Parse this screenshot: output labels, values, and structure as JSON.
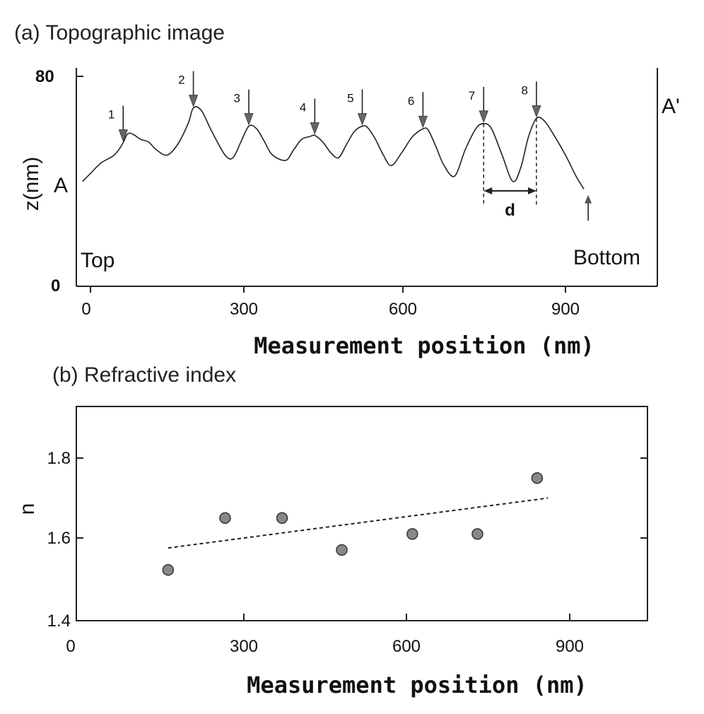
{
  "chart_data": [
    {
      "type": "line",
      "title": "(a) Topographic image",
      "xlabel": "Measurement position (nm)",
      "ylabel": "z(nm)",
      "xlim": [
        0,
        1040
      ],
      "ylim": [
        0,
        80
      ],
      "x_ticks": [
        "0",
        "300",
        "600",
        "900"
      ],
      "y_ticks": [
        "0",
        "80"
      ],
      "profile": {
        "x": [
          -15,
          0,
          20,
          45,
          60,
          70,
          80,
          95,
          110,
          125,
          145,
          165,
          185,
          195,
          210,
          230,
          255,
          270,
          285,
          300,
          315,
          330,
          345,
          370,
          385,
          400,
          415,
          425,
          440,
          455,
          470,
          485,
          500,
          515,
          525,
          540,
          555,
          570,
          590,
          610,
          630,
          640,
          655,
          670,
          690,
          710,
          730,
          745,
          760,
          780,
          800,
          815,
          830,
          845,
          860,
          880,
          900,
          920,
          935
        ],
        "y": [
          40,
          43,
          47,
          50,
          54,
          58,
          58,
          56,
          55,
          52,
          50,
          54,
          62,
          68,
          67,
          59,
          50,
          49,
          55,
          61,
          60,
          55,
          50,
          48,
          52,
          56,
          57,
          57.5,
          55,
          51,
          49,
          54,
          59,
          61,
          60.5,
          56,
          50,
          46,
          51,
          57,
          60,
          59.5,
          53,
          46,
          42,
          52,
          60,
          62,
          60,
          50,
          40,
          45,
          57,
          64,
          63,
          57,
          50,
          42,
          37
        ]
      },
      "arrows": [
        {
          "label": "1",
          "x": 62
        },
        {
          "label": "2",
          "x": 195
        },
        {
          "label": "3",
          "x": 300
        },
        {
          "label": "4",
          "x": 425
        },
        {
          "label": "5",
          "x": 515
        },
        {
          "label": "6",
          "x": 630
        },
        {
          "label": "7",
          "x": 745
        },
        {
          "label": "8",
          "x": 845
        }
      ],
      "annotations": {
        "start_label": "A",
        "end_label": "A'",
        "top_label": "Top",
        "bottom_label": "Bottom",
        "period_label": "d",
        "period_from": 745,
        "period_to": 845,
        "end_marker_x": 935
      }
    },
    {
      "type": "scatter",
      "title": "(b) Refractive index",
      "xlabel": "Measurement position (nm)",
      "ylabel": "n",
      "xlim": [
        0,
        1040
      ],
      "ylim": [
        1.4,
        1.9
      ],
      "x_ticks": [
        "0",
        "300",
        "600",
        "900"
      ],
      "y_ticks": [
        "1.4",
        "1.6",
        "1.8"
      ],
      "points": {
        "x": [
          160,
          265,
          370,
          480,
          610,
          730,
          840
        ],
        "y": [
          1.52,
          1.65,
          1.65,
          1.57,
          1.61,
          1.61,
          1.75
        ]
      },
      "trendline": {
        "x": [
          160,
          860
        ],
        "y": [
          1.575,
          1.7
        ]
      },
      "marker_color": "#888888"
    }
  ]
}
